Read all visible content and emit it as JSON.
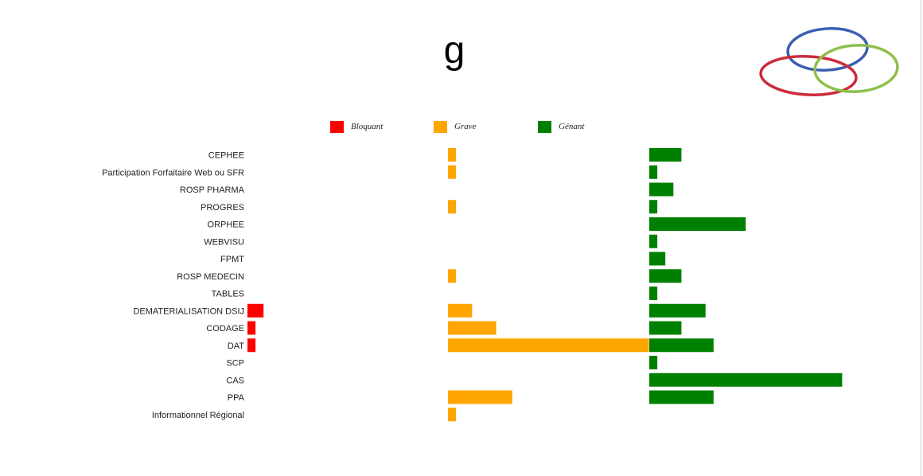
{
  "title": "g",
  "legend": {
    "bloquant": "Bloquant",
    "grave": "Grave",
    "genant": "Génant"
  },
  "colors": {
    "bloquant": "#ff0000",
    "grave": "#ffa500",
    "genant": "#008000",
    "logo_blue": "#3a5fb0",
    "logo_red": "#cc2b3b",
    "logo_green": "#8dc04a"
  },
  "logo": {
    "icon": "three-rings-logo-icon"
  },
  "chart_data": {
    "type": "bar",
    "orientation": "horizontal",
    "layout": "three side-by-side panels",
    "legend_position": "top",
    "grid": false,
    "categories": [
      "CEPHEE",
      "Participation Forfaitaire Web ou SFR",
      "ROSP PHARMA",
      "PROGRES",
      "ORPHEE",
      "WEBVISU",
      "FPMT",
      "ROSP MEDECIN",
      "TABLES",
      "DEMATERIALISATION DSIJ",
      "CODAGE",
      "DAT",
      "SCP",
      "CAS",
      "PPA",
      "Informationnel Régional"
    ],
    "series": [
      {
        "name": "Bloquant",
        "key": "bloquant",
        "values": [
          0,
          0,
          0,
          0,
          0,
          0,
          0,
          0,
          0,
          2,
          1,
          1,
          0,
          0,
          0,
          0
        ]
      },
      {
        "name": "Grave",
        "key": "grave",
        "values": [
          1,
          1,
          0,
          1,
          0,
          0,
          0,
          1,
          0,
          3,
          6,
          25,
          0,
          0,
          8,
          1
        ]
      },
      {
        "name": "Génant",
        "key": "genant",
        "values": [
          4,
          1,
          3,
          1,
          12,
          1,
          2,
          4,
          1,
          7,
          4,
          8,
          1,
          24,
          8,
          0
        ]
      }
    ],
    "xlim": [
      0,
      25
    ]
  }
}
